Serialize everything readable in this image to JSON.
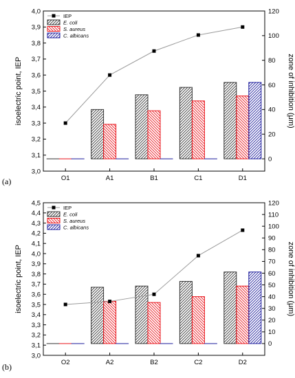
{
  "chart_data": [
    {
      "type": "bar",
      "panel_label": "(a)",
      "categories": [
        "O1",
        "A1",
        "B1",
        "C1",
        "D1"
      ],
      "ylabel": "isoelectric point, IEP",
      "ylabel2": "zone of inhibition (μm)",
      "ylim": [
        3.0,
        4.0
      ],
      "ylim2": [
        -10,
        120
      ],
      "y_ticks": [
        "3,0",
        "3,1",
        "3,2",
        "3,3",
        "3,4",
        "3,5",
        "3,6",
        "3,7",
        "3,8",
        "3,9",
        "4,0"
      ],
      "y2_ticks": [
        "0",
        "20",
        "40",
        "60",
        "80",
        "100",
        "120"
      ],
      "iep_series": {
        "name": "IEP",
        "values": [
          3.3,
          3.6,
          3.75,
          3.85,
          3.9
        ]
      },
      "series": [
        {
          "name": "E. coli",
          "values": [
            0,
            40,
            52,
            58,
            62
          ]
        },
        {
          "name": "S. aureus",
          "values": [
            0,
            28,
            39,
            47,
            51
          ]
        },
        {
          "name": "C. albicans",
          "values": [
            0,
            0,
            0,
            0,
            62
          ]
        }
      ],
      "legend_position": "top-left",
      "grid": false
    },
    {
      "type": "bar",
      "panel_label": "(b)",
      "categories": [
        "O2",
        "A2",
        "B2",
        "C2",
        "D2"
      ],
      "ylabel": "isoelectric point, IEP",
      "ylabel2": "zone of inhibition (μm)",
      "ylim": [
        3.0,
        4.5
      ],
      "ylim2": [
        -10,
        120
      ],
      "y_ticks": [
        "3,0",
        "3,1",
        "3,2",
        "3,3",
        "3,4",
        "3,5",
        "3,6",
        "3,7",
        "3,8",
        "3,9",
        "4,0",
        "4,1",
        "4,2",
        "4,3",
        "4,4",
        "4,5"
      ],
      "y2_ticks": [
        "0",
        "10",
        "20",
        "30",
        "40",
        "50",
        "60",
        "70",
        "80",
        "90",
        "100",
        "110",
        "120"
      ],
      "iep_series": {
        "name": "IEP",
        "values": [
          3.5,
          3.53,
          3.6,
          3.98,
          4.23
        ]
      },
      "series": [
        {
          "name": "E. coli",
          "values": [
            0,
            48,
            49,
            53,
            61
          ]
        },
        {
          "name": "S. aureus",
          "values": [
            0,
            36,
            35,
            40,
            49
          ]
        },
        {
          "name": "C. albicans",
          "values": [
            0,
            0,
            0,
            0,
            61
          ]
        }
      ],
      "legend_position": "top-left",
      "grid": false
    }
  ],
  "colors": {
    "iep": "#000000",
    "line": "#9a9a9a",
    "e_coli": "#333333",
    "s_aureus": "#e8131a",
    "c_albicans": "#1c1c9c",
    "frame": "#000000"
  },
  "legend_styles": [
    "normal",
    "italic",
    "italic"
  ]
}
